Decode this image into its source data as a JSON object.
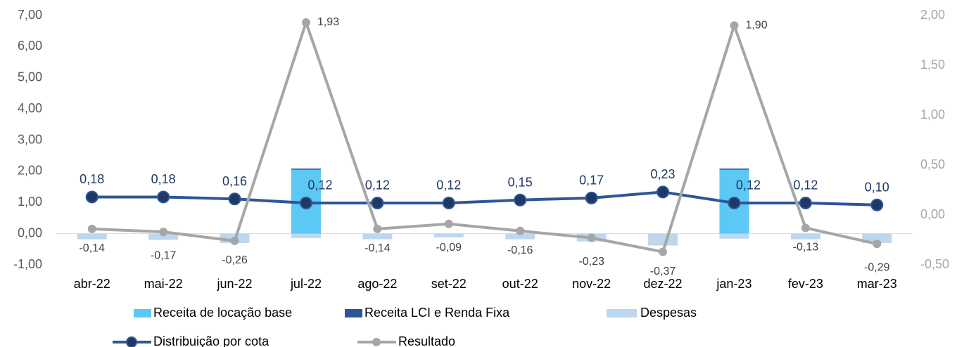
{
  "chart_data": {
    "type": "bar",
    "categories": [
      "abr-22",
      "mai-22",
      "jun-22",
      "jul-22",
      "ago-22",
      "set-22",
      "out-22",
      "nov-22",
      "dez-22",
      "jan-23",
      "fev-23",
      "mar-23"
    ],
    "ylim": [
      -1,
      7
    ],
    "yticks": [
      {
        "value": -1,
        "label": "-1,00"
      },
      {
        "value": 0,
        "label": "0,00"
      },
      {
        "value": 1,
        "label": "1,00"
      },
      {
        "value": 2,
        "label": "2,00"
      },
      {
        "value": 3,
        "label": "3,00"
      },
      {
        "value": 4,
        "label": "4,00"
      },
      {
        "value": 5,
        "label": "5,00"
      },
      {
        "value": 6,
        "label": "6,00"
      },
      {
        "value": 7,
        "label": "7,00"
      }
    ],
    "y2lim": [
      -0.5,
      2
    ],
    "y2ticks": [
      {
        "value": -0.5,
        "label": "-0,50"
      },
      {
        "value": 0,
        "label": "0,00"
      },
      {
        "value": 0.5,
        "label": "0,50"
      },
      {
        "value": 1,
        "label": "1,00"
      },
      {
        "value": 1.5,
        "label": "1,50"
      },
      {
        "value": 2,
        "label": "2,00"
      }
    ],
    "series": [
      {
        "name": "Receita de locação base",
        "type": "bar",
        "color": "#5bc8f5",
        "values": [
          0,
          0,
          0,
          2.05,
          0,
          0,
          0,
          0,
          0,
          2.05,
          0,
          0
        ]
      },
      {
        "name": "Receita LCI e Renda Fixa",
        "type": "bar",
        "color": "#2f5597",
        "values": [
          0,
          0,
          0,
          0.04,
          0,
          0,
          0,
          0,
          0,
          0.04,
          0,
          0
        ]
      },
      {
        "name": "Despesas",
        "type": "bar",
        "color": "#bdd7ee",
        "values": [
          -0.18,
          -0.2,
          -0.3,
          -0.14,
          -0.18,
          -0.12,
          -0.18,
          -0.25,
          -0.38,
          -0.16,
          -0.18,
          -0.3
        ]
      },
      {
        "name": "Distribuição por cota",
        "type": "line",
        "axis": "y2",
        "color": "#2f5597",
        "marker_color": "#1f3864",
        "values": [
          0.18,
          0.18,
          0.16,
          0.12,
          0.12,
          0.12,
          0.15,
          0.17,
          0.23,
          0.12,
          0.12,
          0.1
        ],
        "value_labels": [
          "0,18",
          "0,18",
          "0,16",
          "0,12",
          "0,12",
          "0,12",
          "0,15",
          "0,17",
          "0,23",
          "0,12",
          "0,12",
          "0,10"
        ]
      },
      {
        "name": "Resultado",
        "type": "line",
        "axis": "y2",
        "color": "#a6a6a6",
        "marker_color": "#a6a6a6",
        "values": [
          -0.14,
          -0.17,
          -0.26,
          1.93,
          -0.14,
          -0.09,
          -0.16,
          -0.23,
          -0.37,
          1.9,
          -0.13,
          -0.29
        ],
        "value_labels": [
          "-0,14",
          "-0,17",
          "-0,26",
          "1,93",
          "-0,14",
          "-0,09",
          "-0,16",
          "-0,23",
          "-0,37",
          "1,90",
          "-0,13",
          "-0,29"
        ]
      }
    ]
  }
}
